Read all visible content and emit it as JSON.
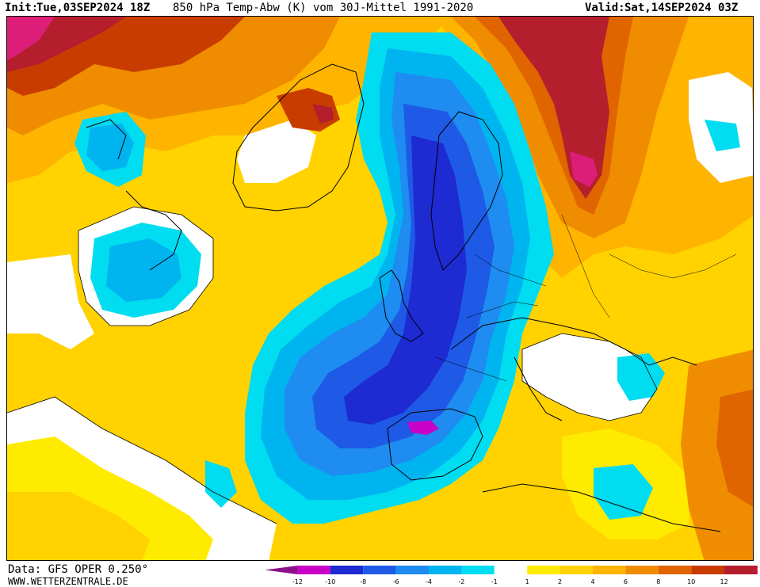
{
  "header": {
    "init_label": "Init:",
    "init_value": "Tue,03SEP2024 18Z",
    "product": "850 hPa Temp-Abw (K) vom 30J-Mittel 1991-2020",
    "valid_label": "Valid:",
    "valid_value": "Sat,14SEP2024 03Z"
  },
  "footer": {
    "data_source": "Data: GFS OPER 0.250°",
    "website": "WWW.WETTERZENTRALE.DE"
  },
  "legend": {
    "ticks": [
      "-12",
      "-10",
      "-8",
      "-6",
      "-4",
      "-2",
      "-1",
      "1",
      "2",
      "4",
      "6",
      "8",
      "10",
      "12"
    ],
    "colors": [
      "#8c0f8c",
      "#c800c8",
      "#1e2ad2",
      "#1e5ae6",
      "#1e8cf0",
      "#00b4f0",
      "#00dcf0",
      "#ffffff",
      "#ffeb00",
      "#ffd200",
      "#ffb400",
      "#f08c00",
      "#e06400",
      "#c83c00",
      "#b41e2d",
      "#dc1e78"
    ]
  },
  "map": {
    "variable": "850 hPa temperature anomaly",
    "unit": "K"
  }
}
